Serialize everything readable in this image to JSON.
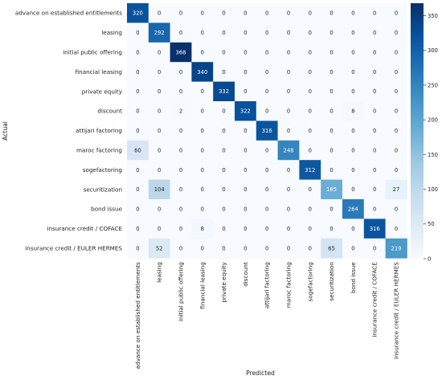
{
  "chart_data": {
    "type": "heatmap",
    "xlabel": "Predicted",
    "ylabel": "Actual",
    "labels": [
      "advance on established entitlements",
      "leasing",
      "initial public offering",
      "financial leasing",
      "private equity",
      "discount",
      "attijari factoring",
      "maroc factoring",
      "sogefactoring",
      "securitization",
      "bond issue",
      "insurance credit / COFACE",
      "insurance credit / EULER HERMES"
    ],
    "matrix": [
      [
        320,
        0,
        0,
        0,
        0,
        0,
        0,
        0,
        0,
        0,
        0,
        0,
        0
      ],
      [
        0,
        292,
        0,
        0,
        0,
        0,
        0,
        0,
        0,
        0,
        0,
        0,
        0
      ],
      [
        0,
        0,
        368,
        0,
        0,
        0,
        0,
        0,
        0,
        0,
        0,
        0,
        0
      ],
      [
        0,
        0,
        0,
        340,
        0,
        0,
        0,
        0,
        0,
        0,
        0,
        0,
        0
      ],
      [
        0,
        0,
        0,
        0,
        332,
        0,
        0,
        0,
        0,
        0,
        0,
        0,
        0
      ],
      [
        0,
        0,
        2,
        0,
        0,
        322,
        0,
        0,
        0,
        0,
        8,
        0,
        0
      ],
      [
        0,
        0,
        0,
        0,
        0,
        0,
        316,
        0,
        0,
        0,
        0,
        0,
        0
      ],
      [
        60,
        0,
        0,
        0,
        0,
        0,
        0,
        248,
        0,
        0,
        0,
        0,
        0
      ],
      [
        0,
        0,
        0,
        0,
        0,
        0,
        0,
        0,
        312,
        0,
        0,
        0,
        0
      ],
      [
        0,
        104,
        0,
        0,
        0,
        0,
        0,
        0,
        0,
        185,
        0,
        0,
        27
      ],
      [
        0,
        0,
        0,
        0,
        0,
        0,
        0,
        0,
        0,
        0,
        264,
        0,
        0
      ],
      [
        0,
        0,
        0,
        8,
        0,
        0,
        0,
        0,
        0,
        0,
        0,
        316,
        0
      ],
      [
        0,
        52,
        0,
        0,
        0,
        0,
        0,
        0,
        0,
        65,
        0,
        0,
        219
      ]
    ],
    "colorbar": {
      "min": 0,
      "max": 368,
      "ticks": [
        0,
        50,
        100,
        150,
        200,
        250,
        300,
        350
      ],
      "colormap": "Blues"
    }
  }
}
